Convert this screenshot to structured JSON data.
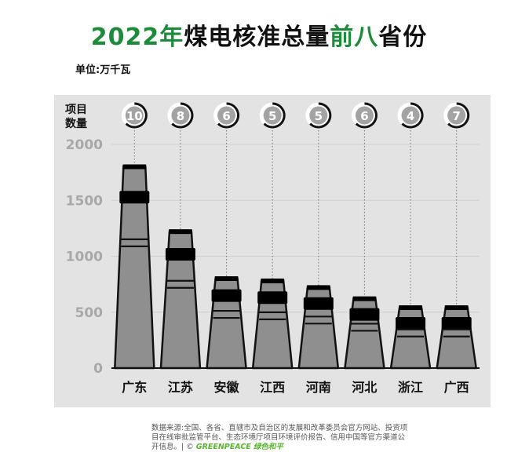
{
  "title": {
    "part1": "2022年",
    "part2": "煤电核准总量",
    "part3": "前八",
    "part4": "省份"
  },
  "unit_label": "单位:万千瓦",
  "count_label": [
    "项目",
    "数量"
  ],
  "colors": {
    "accent_green": "#1e8a3c",
    "panel_bg": "#e3e3e3",
    "chimney_fill": "#8f8f8f",
    "band": "#000000",
    "tick_text": "#a8a8a8"
  },
  "chart_data": {
    "type": "bar",
    "title": "2022年煤电核准总量前八省份",
    "ylabel": "单位:万千瓦",
    "categories": [
      "广东",
      "江苏",
      "安徽",
      "江西",
      "河南",
      "河北",
      "浙江",
      "广西"
    ],
    "values": [
      1800,
      1220,
      800,
      780,
      720,
      620,
      540,
      540
    ],
    "project_counts": [
      10,
      8,
      6,
      5,
      5,
      6,
      4,
      7
    ],
    "yticks": [
      0,
      500,
      1000,
      1500,
      2000
    ],
    "ylim": [
      0,
      2000
    ],
    "grid": true
  },
  "source": {
    "text": "数据来源:全国、各省、直辖市及自治区的发展和改革委员会官方网站、投资项目在线审批监管平台、生态环境厅项目环境评价报告、信用中国等官方渠道公开信息。| ©",
    "logo_en": "GREENPEACE",
    "logo_cn": "绿色和平"
  }
}
